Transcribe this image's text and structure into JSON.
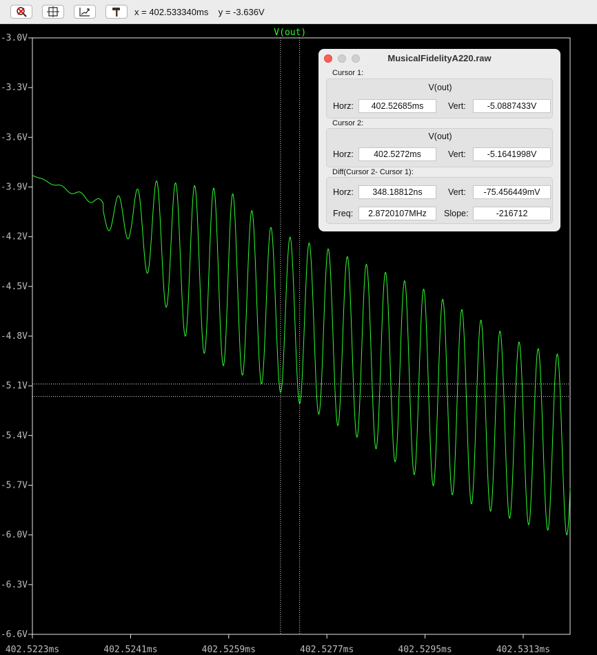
{
  "toolbar": {
    "buttons": [
      {
        "icon": "zoom-cancel-icon"
      },
      {
        "icon": "zoom-fit-icon"
      },
      {
        "icon": "autorange-icon"
      },
      {
        "icon": "hammer-icon"
      }
    ],
    "x_readout": "x = 402.533340ms",
    "y_readout": "y = -3.636V"
  },
  "colors": {
    "trace": "#2cff2c",
    "grid": "#e8e8e8",
    "background": "#000000"
  },
  "chart_data": {
    "type": "line",
    "trace_label": "V(out)",
    "x_ticks": [
      "402.5223ms",
      "402.5241ms",
      "402.5259ms",
      "402.5277ms",
      "402.5295ms",
      "402.5313ms"
    ],
    "x_tick_values": [
      402.5223,
      402.5241,
      402.5259,
      402.5277,
      402.5295,
      402.5313
    ],
    "y_ticks": [
      "-3.0V",
      "-3.3V",
      "-3.6V",
      "-3.9V",
      "-4.2V",
      "-4.5V",
      "-4.8V",
      "-5.1V",
      "-5.4V",
      "-5.7V",
      "-6.0V",
      "-6.3V",
      "-6.6V"
    ],
    "xlim": [
      402.5223,
      402.53216
    ],
    "ylim": [
      -6.6,
      -3.0
    ],
    "cursors": [
      {
        "x": 402.52685,
        "y": -5.0887433
      },
      {
        "x": 402.5272,
        "y": -5.1641998
      }
    ],
    "series": [
      {
        "name": "V(out)",
        "envelope_upper_x": [
          402.5223,
          402.5236,
          402.5241,
          402.5246,
          402.5259,
          402.5268,
          402.5277,
          402.5286,
          402.5295,
          402.5304,
          402.5313,
          402.53216
        ],
        "envelope_upper_y": [
          -3.83,
          -3.98,
          -3.93,
          -3.86,
          -3.92,
          -4.18,
          -4.27,
          -4.39,
          -4.52,
          -4.68,
          -4.85,
          -4.93
        ],
        "envelope_lower_x": [
          402.5236,
          402.5241,
          402.5246,
          402.5252,
          402.5259,
          402.5268,
          402.5277,
          402.5286,
          402.5295,
          402.5304,
          402.5313,
          402.53206
        ],
        "envelope_lower_y": [
          -4.15,
          -4.22,
          -4.55,
          -4.85,
          -5.0,
          -5.13,
          -5.3,
          -5.48,
          -5.68,
          -5.82,
          -5.93,
          -6.0
        ],
        "oscillation_period_ns": 350
      }
    ]
  },
  "dialog": {
    "title": "MusicalFidelityA220.raw",
    "cursor1": {
      "label": "Cursor 1:",
      "trace": "V(out)",
      "horz_label": "Horz:",
      "horz": "402.52685ms",
      "vert_label": "Vert:",
      "vert": "-5.0887433V"
    },
    "cursor2": {
      "label": "Cursor 2:",
      "trace": "V(out)",
      "horz_label": "Horz:",
      "horz": "402.5272ms",
      "vert_label": "Vert:",
      "vert": "-5.1641998V"
    },
    "diff": {
      "label": "Diff(Cursor 2- Cursor 1):",
      "horz_label": "Horz:",
      "horz": "348.18812ns",
      "vert_label": "Vert:",
      "vert": "-75.456449mV",
      "freq_label": "Freq:",
      "freq": "2.8720107MHz",
      "slope_label": "Slope:",
      "slope": "-216712"
    }
  }
}
